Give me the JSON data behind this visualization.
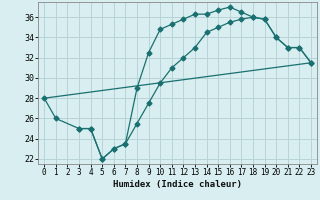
{
  "xlabel": "Humidex (Indice chaleur)",
  "bg_color": "#d8eef0",
  "grid_color": "#b8d4d8",
  "line_color": "#1a7070",
  "xlim": [
    -0.5,
    23.5
  ],
  "ylim": [
    21.5,
    37.5
  ],
  "xticks": [
    0,
    1,
    2,
    3,
    4,
    5,
    6,
    7,
    8,
    9,
    10,
    11,
    12,
    13,
    14,
    15,
    16,
    17,
    18,
    19,
    20,
    21,
    22,
    23
  ],
  "yticks": [
    22,
    24,
    26,
    28,
    30,
    32,
    34,
    36
  ],
  "line1_x": [
    0,
    1,
    3,
    4,
    5,
    6,
    7,
    8,
    9,
    10,
    11,
    12,
    13,
    14,
    15,
    16,
    17,
    18,
    19,
    20,
    21,
    22,
    23
  ],
  "line1_y": [
    28,
    26,
    25,
    25,
    22,
    23,
    23.5,
    29,
    32.5,
    34.8,
    35.3,
    35.8,
    36.3,
    36.3,
    36.7,
    37.0,
    36.5,
    36.0,
    35.8,
    34.0,
    33.0,
    33.0,
    31.5
  ],
  "line2_x": [
    0,
    23
  ],
  "line2_y": [
    28,
    31.5
  ],
  "line3_x": [
    3,
    4,
    5,
    6,
    7,
    8,
    9,
    10,
    11,
    12,
    13,
    14,
    15,
    16,
    17,
    18,
    19,
    20,
    21,
    22,
    23
  ],
  "line3_y": [
    25,
    25,
    22,
    23,
    23.5,
    25.5,
    27.5,
    29.5,
    31.0,
    32.0,
    33.0,
    34.5,
    35.0,
    35.5,
    35.8,
    36.0,
    35.8,
    34.0,
    33.0,
    33.0,
    31.5
  ]
}
